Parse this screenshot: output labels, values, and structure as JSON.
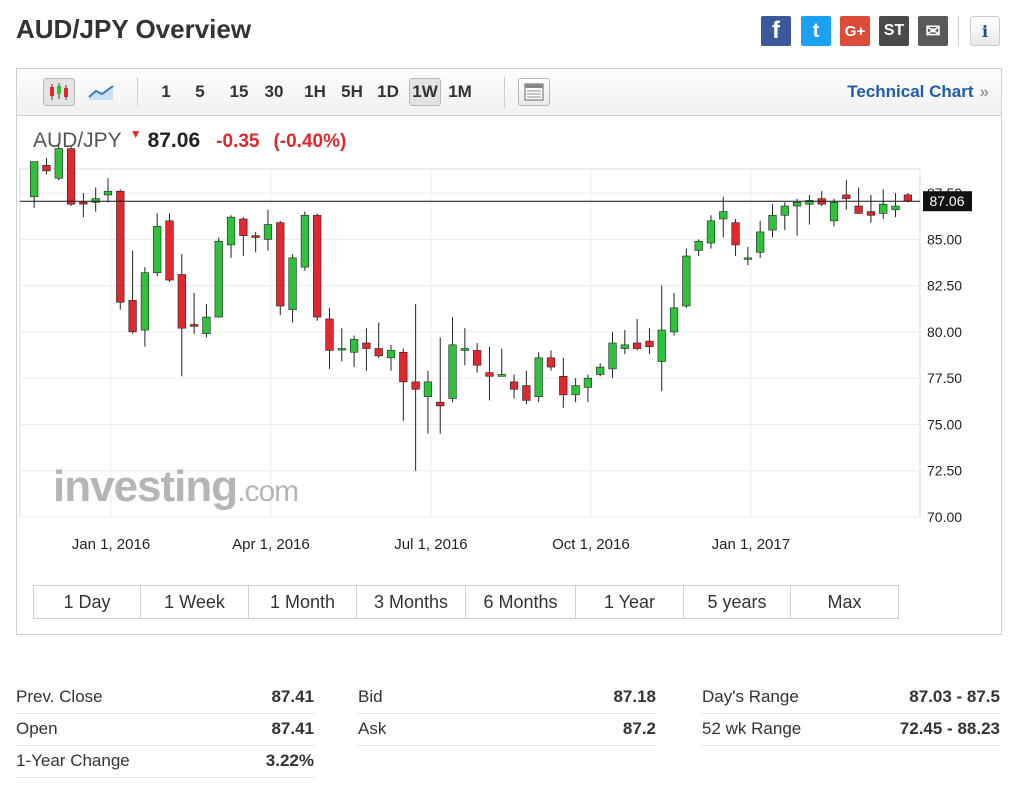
{
  "page_title": "AUD/JPY Overview",
  "share_icons": [
    "facebook-icon",
    "twitter-icon",
    "google-plus-icon",
    "stocktwits-icon",
    "mail-icon",
    "info-icon"
  ],
  "share_labels": {
    "facebook": "f",
    "twitter": "t",
    "google_plus": "G+",
    "stocktwits": "ST",
    "mail": "✉",
    "info": "i"
  },
  "toolbar": {
    "timeframes": [
      "1",
      "5",
      "15",
      "30",
      "1H",
      "5H",
      "1D",
      "1W",
      "1M"
    ],
    "active_timeframe": "1W",
    "technical_chart_label": "Technical Chart",
    "technical_chart_chevron": "»"
  },
  "quote": {
    "symbol": "AUD/JPY",
    "arrow": "▼",
    "last": "87.06",
    "change": "-0.35",
    "change_pct": "(-0.40%)"
  },
  "watermark": {
    "brand": "investing",
    "suffix": ".com"
  },
  "ranges": [
    "1 Day",
    "1 Week",
    "1 Month",
    "3 Months",
    "6 Months",
    "1 Year",
    "5 years",
    "Max"
  ],
  "colors": {
    "up": "#2ec23a",
    "down": "#e0282e",
    "accent": "#1f5da8"
  },
  "chart_data": {
    "type": "candlestick",
    "x_tick_labels": [
      "Jan 1, 2016",
      "Apr 1, 2016",
      "Jul 1, 2016",
      "Oct 1, 2016",
      "Jan 1, 2017"
    ],
    "y_tick_labels": [
      "87.50",
      "85.00",
      "82.50",
      "80.00",
      "77.50",
      "75.00",
      "72.50",
      "70.00"
    ],
    "ylim": [
      70.0,
      88.8
    ],
    "current_price_label": "87.06",
    "current_price": 87.06,
    "grid": true,
    "candles": [
      [
        87.3,
        89.2,
        86.7,
        89.2
      ],
      [
        89.0,
        89.4,
        88.5,
        88.7
      ],
      [
        88.3,
        90.1,
        88.2,
        89.9
      ],
      [
        89.9,
        90.0,
        86.8,
        86.9
      ],
      [
        87.0,
        87.5,
        86.2,
        86.9
      ],
      [
        87.0,
        87.8,
        86.5,
        87.2
      ],
      [
        87.4,
        88.3,
        87.0,
        87.6
      ],
      [
        87.6,
        87.7,
        81.2,
        81.6
      ],
      [
        81.7,
        84.4,
        79.9,
        80.0
      ],
      [
        80.1,
        83.5,
        79.2,
        83.2
      ],
      [
        83.2,
        86.4,
        83.0,
        85.7
      ],
      [
        86.0,
        86.4,
        82.7,
        82.8
      ],
      [
        83.1,
        84.2,
        77.6,
        80.2
      ],
      [
        80.4,
        82.1,
        79.9,
        80.3
      ],
      [
        79.9,
        81.5,
        79.7,
        80.8
      ],
      [
        80.8,
        85.1,
        80.8,
        84.9
      ],
      [
        84.7,
        86.3,
        84.0,
        86.2
      ],
      [
        86.1,
        86.2,
        84.1,
        85.2
      ],
      [
        85.2,
        85.4,
        84.3,
        85.1
      ],
      [
        85.0,
        86.6,
        84.4,
        85.8
      ],
      [
        85.9,
        86.0,
        80.9,
        81.4
      ],
      [
        81.2,
        84.2,
        80.5,
        84.0
      ],
      [
        83.5,
        86.5,
        83.3,
        86.3
      ],
      [
        86.3,
        86.4,
        80.6,
        80.8
      ],
      [
        80.7,
        81.3,
        78.0,
        79.0
      ],
      [
        79.1,
        80.2,
        78.4,
        79.1
      ],
      [
        78.9,
        79.8,
        78.1,
        79.6
      ],
      [
        79.4,
        80.2,
        77.9,
        79.1
      ],
      [
        79.1,
        80.5,
        78.6,
        78.7
      ],
      [
        78.6,
        79.3,
        77.9,
        79.0
      ],
      [
        78.9,
        79.1,
        75.2,
        77.3
      ],
      [
        77.3,
        81.5,
        72.5,
        76.9
      ],
      [
        76.5,
        77.9,
        74.5,
        77.3
      ],
      [
        76.2,
        79.7,
        74.5,
        76.0
      ],
      [
        76.4,
        80.8,
        76.2,
        79.3
      ],
      [
        79.0,
        80.2,
        78.2,
        79.1
      ],
      [
        79.0,
        79.4,
        77.8,
        78.2
      ],
      [
        77.8,
        79.2,
        76.3,
        77.6
      ],
      [
        77.6,
        79.1,
        77.6,
        77.7
      ],
      [
        77.3,
        77.7,
        76.4,
        76.9
      ],
      [
        77.1,
        77.9,
        76.1,
        76.3
      ],
      [
        76.5,
        78.9,
        76.2,
        78.6
      ],
      [
        78.6,
        79.0,
        77.9,
        78.1
      ],
      [
        77.6,
        78.6,
        75.9,
        76.6
      ],
      [
        76.6,
        77.5,
        76.2,
        77.1
      ],
      [
        77.0,
        77.7,
        76.2,
        77.5
      ],
      [
        77.7,
        78.3,
        77.6,
        78.1
      ],
      [
        78.0,
        80.0,
        77.5,
        79.4
      ],
      [
        79.1,
        80.1,
        78.8,
        79.3
      ],
      [
        79.4,
        80.7,
        79.0,
        79.1
      ],
      [
        79.5,
        80.2,
        78.8,
        79.2
      ],
      [
        78.4,
        82.5,
        76.8,
        80.1
      ],
      [
        80.0,
        82.1,
        79.8,
        81.3
      ],
      [
        81.4,
        84.5,
        81.3,
        84.1
      ],
      [
        84.4,
        85.0,
        84.1,
        84.9
      ],
      [
        84.8,
        86.3,
        84.5,
        86.0
      ],
      [
        86.1,
        87.3,
        85.1,
        86.5
      ],
      [
        85.9,
        86.1,
        84.1,
        84.7
      ],
      [
        84.0,
        84.6,
        83.6,
        84.0
      ],
      [
        84.3,
        86.0,
        84.0,
        85.4
      ],
      [
        85.5,
        86.9,
        85.1,
        86.3
      ],
      [
        86.3,
        87.0,
        85.5,
        86.8
      ],
      [
        86.8,
        87.2,
        85.2,
        87.0
      ],
      [
        86.9,
        87.4,
        85.8,
        87.1
      ],
      [
        87.2,
        87.6,
        86.8,
        86.9
      ],
      [
        86.0,
        87.2,
        85.7,
        87.0
      ],
      [
        87.4,
        88.2,
        86.6,
        87.2
      ],
      [
        86.8,
        87.8,
        86.5,
        86.4
      ],
      [
        86.5,
        87.4,
        85.9,
        86.3
      ],
      [
        86.4,
        87.7,
        86.1,
        86.9
      ],
      [
        86.6,
        87.5,
        86.2,
        86.8
      ],
      [
        87.4,
        87.5,
        87.0,
        87.06
      ]
    ]
  },
  "stats": {
    "col1": [
      {
        "label": "Prev. Close",
        "value": "87.41"
      },
      {
        "label": "Open",
        "value": "87.41"
      },
      {
        "label": "1-Year Change",
        "value": "3.22%"
      }
    ],
    "col2": [
      {
        "label": "Bid",
        "value": "87.18"
      },
      {
        "label": "Ask",
        "value": "87.2"
      }
    ],
    "col3": [
      {
        "label": "Day's Range",
        "value": "87.03 - 87.5"
      },
      {
        "label": "52 wk Range",
        "value": "72.45 - 88.23"
      }
    ]
  }
}
